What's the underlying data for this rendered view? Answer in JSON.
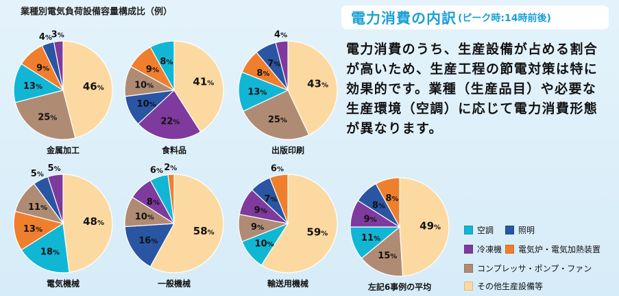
{
  "figure_title": "業種別電気負荷設備容量構成比（例）",
  "header": {
    "title": "電力消費の内訳",
    "subtitle": "(ピーク時:14時前後)"
  },
  "description": "電力消費のうち、生産設備が占める割合が高いため、生産工程の節電対策は特に効果的です。業種（生産品目）や必要な生産環境（空調）に応じて電力消費形態が異なります。",
  "colors": {
    "空調": "#11b6d4",
    "照明": "#2a55a3",
    "冷凍機": "#7e3a9c",
    "電気炉・電気加熱装置": "#ef7f2d",
    "コンプレッサ・ポンプ・ファン": "#b08b73",
    "その他生産設備等": "#fdd9a2"
  },
  "legend": [
    "空調",
    "照明",
    "冷凍機",
    "電気炉・電気加熱装置",
    "コンプレッサ・ポンプ・ファン",
    "その他生産設備等"
  ],
  "chart_data": [
    {
      "type": "pie",
      "title": "金属加工",
      "categories": [
        "その他生産設備等",
        "コンプレッサ・ポンプ・ファン",
        "空調",
        "電気炉・電気加熱装置",
        "照明",
        "冷凍機"
      ],
      "values": [
        46,
        25,
        13,
        9,
        4,
        3
      ]
    },
    {
      "type": "pie",
      "title": "食料品",
      "categories": [
        "その他生産設備等",
        "冷凍機",
        "照明",
        "コンプレッサ・ポンプ・ファン",
        "電気炉・電気加熱装置",
        "空調"
      ],
      "values": [
        41,
        22,
        10,
        10,
        9,
        8
      ]
    },
    {
      "type": "pie",
      "title": "出版印刷",
      "categories": [
        "その他生産設備等",
        "コンプレッサ・ポンプ・ファン",
        "空調",
        "電気炉・電気加熱装置",
        "照明",
        "冷凍機"
      ],
      "values": [
        43,
        25,
        13,
        8,
        7,
        4
      ]
    },
    {
      "type": "pie",
      "title": "電気機械",
      "categories": [
        "その他生産設備等",
        "空調",
        "電気炉・電気加熱装置",
        "コンプレッサ・ポンプ・ファン",
        "照明",
        "冷凍機"
      ],
      "values": [
        48,
        18,
        13,
        11,
        5,
        5
      ]
    },
    {
      "type": "pie",
      "title": "一般機械",
      "categories": [
        "その他生産設備等",
        "照明",
        "コンプレッサ・ポンプ・ファン",
        "冷凍機",
        "空調",
        "電気炉・電気加熱装置"
      ],
      "values": [
        58,
        16,
        10,
        8,
        6,
        2
      ]
    },
    {
      "type": "pie",
      "title": "輸送用機械",
      "categories": [
        "その他生産設備等",
        "空調",
        "コンプレッサ・ポンプ・ファン",
        "冷凍機",
        "照明",
        "電気炉・電気加熱装置"
      ],
      "values": [
        59,
        10,
        9,
        9,
        7,
        6
      ]
    },
    {
      "type": "pie",
      "title": "左記6事例の平均",
      "categories": [
        "その他生産設備等",
        "コンプレッサ・ポンプ・ファン",
        "空調",
        "冷凍機",
        "照明",
        "電気炉・電気加熱装置"
      ],
      "values": [
        49,
        15,
        11,
        9,
        8,
        8
      ]
    }
  ]
}
